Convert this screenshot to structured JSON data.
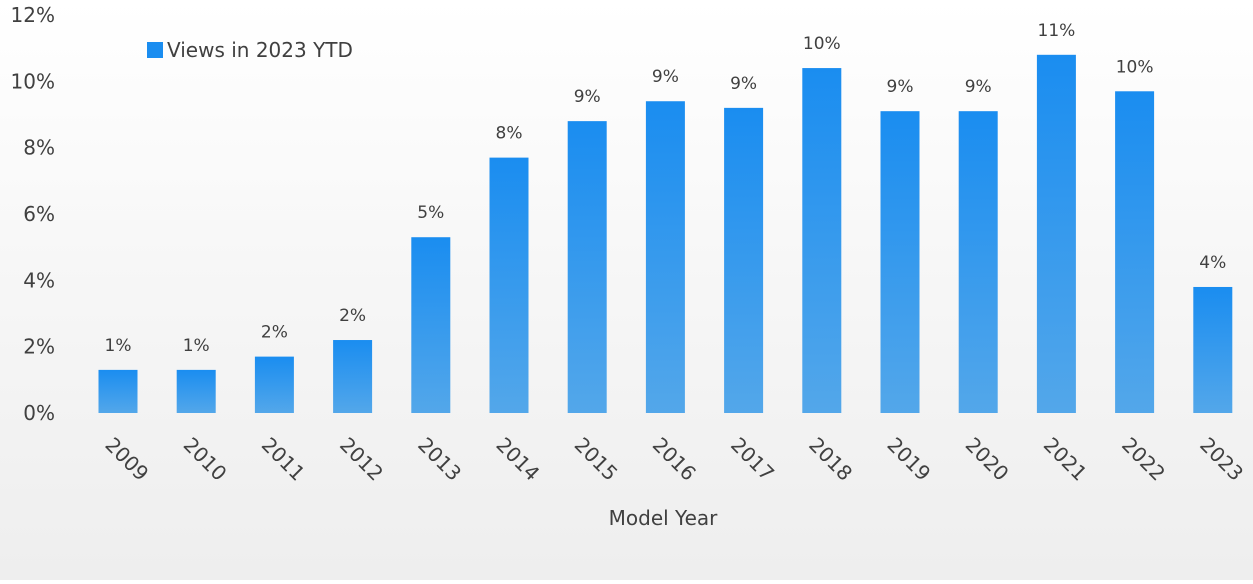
{
  "colors": {
    "bar_top": "#1a8df0",
    "bar_bottom": "#53a7ea",
    "legend_marker": "#1a8df0",
    "text": "#404040"
  },
  "chart_data": {
    "type": "bar",
    "title": "",
    "xlabel": "Model Year",
    "ylabel": "",
    "ylim": [
      0,
      12
    ],
    "y_ticks": [
      0,
      2,
      4,
      6,
      8,
      10,
      12
    ],
    "y_tick_labels": [
      "0%",
      "2%",
      "4%",
      "6%",
      "8%",
      "10%",
      "12%"
    ],
    "grid": false,
    "legend_position": "top-left",
    "categories": [
      "2009",
      "2010",
      "2011",
      "2012",
      "2013",
      "2014",
      "2015",
      "2016",
      "2017",
      "2018",
      "2019",
      "2020",
      "2021",
      "2022",
      "2023"
    ],
    "series": [
      {
        "name": "Views in 2023 YTD",
        "values": [
          1.3,
          1.3,
          1.7,
          2.2,
          5.3,
          7.7,
          8.8,
          9.4,
          9.2,
          10.4,
          9.1,
          9.1,
          10.8,
          9.7,
          3.8
        ],
        "data_labels": [
          "1%",
          "1%",
          "2%",
          "2%",
          "5%",
          "8%",
          "9%",
          "9%",
          "9%",
          "10%",
          "9%",
          "9%",
          "11%",
          "10%",
          "4%"
        ]
      }
    ]
  }
}
